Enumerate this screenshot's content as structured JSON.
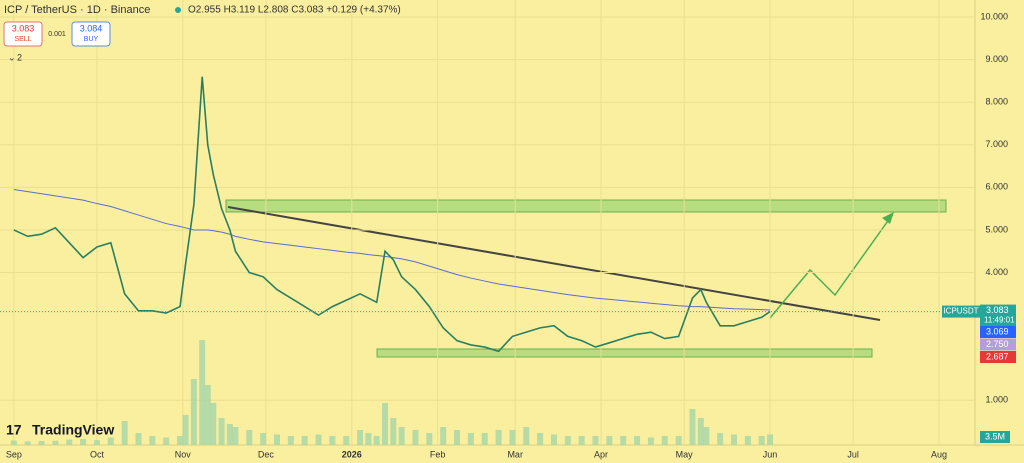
{
  "header": {
    "symbol": "ICP / TetherUS · 1D · Binance",
    "ohlc": "O2.955 H3.119 L2.808 C3.083 +0.129 (+4.37%)",
    "sell_price": "3.083",
    "sell": "SELL",
    "spread": "0.001",
    "buy_price": "3.084",
    "buy": "BUY",
    "indicators": "2"
  },
  "brand": "TradingView",
  "chart_data": {
    "type": "line",
    "x": [
      0,
      5,
      10,
      15,
      20,
      25,
      30,
      35,
      40,
      45,
      50,
      55,
      60,
      62,
      65,
      68,
      70,
      72,
      75,
      78,
      80,
      85,
      90,
      95,
      100,
      105,
      110,
      115,
      120,
      125,
      128,
      131,
      134,
      137,
      140,
      145,
      150,
      155,
      160,
      165,
      170,
      175,
      180,
      185,
      190,
      195,
      200,
      205,
      210,
      215,
      220,
      225,
      230,
      235,
      240,
      245,
      248,
      250,
      255,
      260,
      265,
      270,
      273
    ],
    "series": [
      {
        "name": "ICPUSDT",
        "color": "#2a7f62",
        "values": [
          5.0,
          4.85,
          4.9,
          5.05,
          4.7,
          4.35,
          4.6,
          4.7,
          3.5,
          3.1,
          3.1,
          3.05,
          3.2,
          4.2,
          5.6,
          8.6,
          7.0,
          6.3,
          5.5,
          5.0,
          4.5,
          4.0,
          3.9,
          3.6,
          3.4,
          3.2,
          3.0,
          3.2,
          3.35,
          3.5,
          3.4,
          3.3,
          4.5,
          4.3,
          3.9,
          3.6,
          3.2,
          2.7,
          2.4,
          2.3,
          2.25,
          2.15,
          2.5,
          2.6,
          2.7,
          2.75,
          2.5,
          2.4,
          2.25,
          2.35,
          2.45,
          2.55,
          2.6,
          2.45,
          2.5,
          3.4,
          3.6,
          3.3,
          2.75,
          2.75,
          2.85,
          2.95,
          3.083
        ]
      },
      {
        "name": "MA",
        "color": "#5b6bd6",
        "values": [
          5.95,
          5.9,
          5.85,
          5.8,
          5.75,
          5.7,
          5.62,
          5.55,
          5.45,
          5.35,
          5.25,
          5.15,
          5.08,
          5.05,
          5.0,
          5.0,
          5.0,
          4.98,
          4.95,
          4.9,
          4.85,
          4.78,
          4.72,
          4.68,
          4.64,
          4.6,
          4.56,
          4.52,
          4.48,
          4.45,
          4.42,
          4.4,
          4.38,
          4.35,
          4.32,
          4.25,
          4.15,
          4.05,
          3.95,
          3.87,
          3.8,
          3.73,
          3.68,
          3.63,
          3.58,
          3.53,
          3.48,
          3.44,
          3.4,
          3.37,
          3.34,
          3.31,
          3.28,
          3.25,
          3.22,
          3.2,
          3.2,
          3.19,
          3.17,
          3.15,
          3.14,
          3.13,
          3.12
        ]
      }
    ],
    "volume": [
      1.5,
      1.2,
      1.3,
      1.4,
      1.8,
      2.0,
      1.6,
      2.5,
      8,
      4,
      3,
      2.5,
      3,
      10,
      22,
      35,
      20,
      14,
      9,
      7,
      6,
      5,
      4,
      3.5,
      3,
      3,
      3.5,
      3,
      3,
      5,
      4,
      3,
      14,
      9,
      6,
      5,
      4,
      6,
      5,
      4,
      4,
      5,
      5,
      6,
      4,
      3.5,
      3,
      3,
      3,
      3,
      3,
      3,
      2.5,
      3,
      3,
      12,
      9,
      6,
      4,
      3.5,
      3,
      3,
      3.5
    ],
    "volume_label": "3.5M",
    "xlim": [
      -5,
      347
    ],
    "ylim": [
      -0.05,
      10.4
    ],
    "xticks": [
      {
        "value": 0,
        "label": "Sep"
      },
      {
        "value": 30,
        "label": "Oct"
      },
      {
        "value": 61,
        "label": "Nov"
      },
      {
        "value": 91,
        "label": "Dec"
      },
      {
        "value": 122,
        "label": "2026"
      },
      {
        "value": 153,
        "label": "Feb"
      },
      {
        "value": 181,
        "label": "Mar"
      },
      {
        "value": 212,
        "label": "Apr"
      },
      {
        "value": 242,
        "label": "May"
      },
      {
        "value": 273,
        "label": "Jun"
      },
      {
        "value": 303,
        "label": "Jul"
      },
      {
        "value": 334,
        "label": "Aug"
      }
    ],
    "yticks": [
      {
        "value": 1,
        "label": "1.000"
      },
      {
        "value": 4,
        "label": "4.000"
      },
      {
        "value": 5,
        "label": "5.000"
      },
      {
        "value": 6,
        "label": "6.000"
      },
      {
        "value": 7,
        "label": "7.000"
      },
      {
        "value": 8,
        "label": "8.000"
      },
      {
        "value": 9,
        "label": "9.000"
      },
      {
        "value": 10,
        "label": "10.000"
      }
    ],
    "grid": true,
    "last_price": {
      "name": "ICPUSDT",
      "value": "3.083",
      "countdown": "11:49:01"
    },
    "price_labels": [
      "3.069",
      "2.750",
      "2.687"
    ]
  }
}
